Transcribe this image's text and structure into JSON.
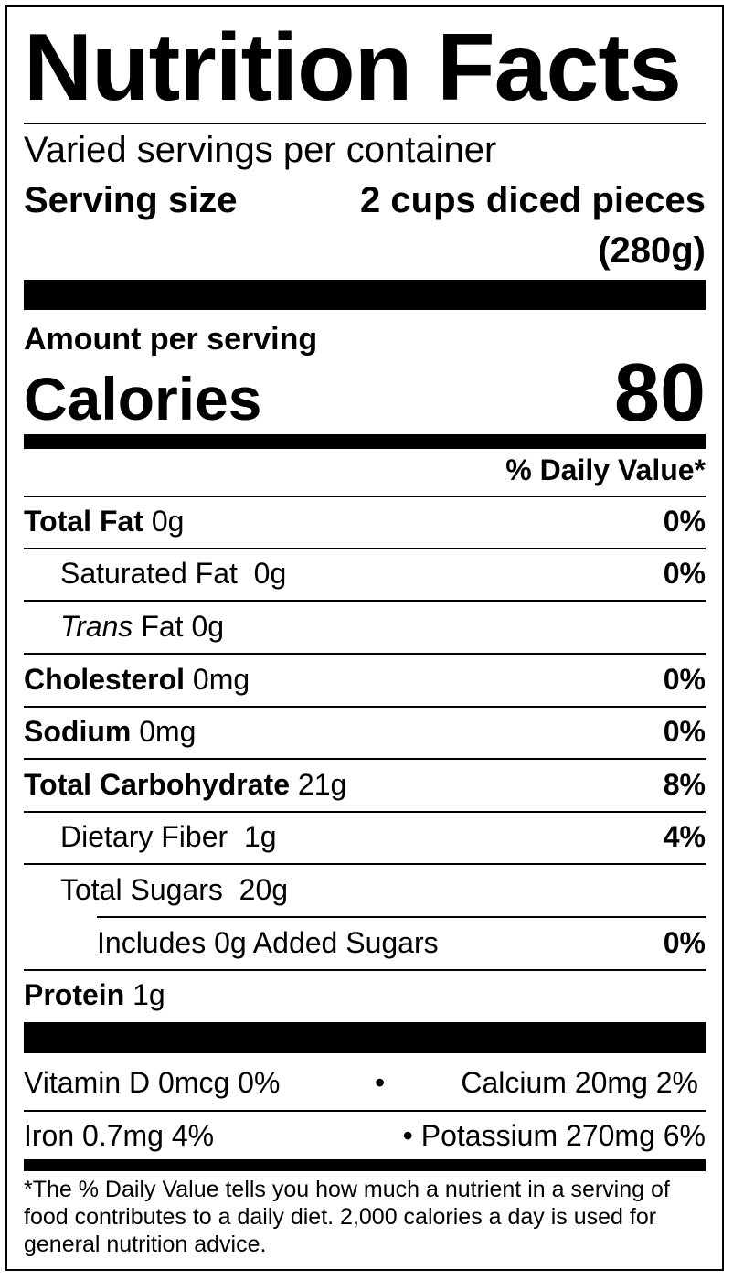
{
  "title": "Nutrition Facts",
  "servings_per_container": "Varied servings per container",
  "serving_size": {
    "label": "Serving size",
    "value": "2 cups diced pieces",
    "grams": "(280g)"
  },
  "amount_per_serving": "Amount per serving",
  "calories": {
    "label": "Calories",
    "value": "80"
  },
  "daily_value_header": "% Daily Value*",
  "nutrients": {
    "total_fat": {
      "label": "Total Fat",
      "amount": "0g",
      "dv": "0%"
    },
    "saturated_fat": {
      "label": "Saturated Fat",
      "amount": "0g",
      "dv": "0%"
    },
    "trans_fat": {
      "label_italic": "Trans",
      "label": "Fat",
      "amount": "0g"
    },
    "cholesterol": {
      "label": "Cholesterol",
      "amount": "0mg",
      "dv": "0%"
    },
    "sodium": {
      "label": "Sodium",
      "amount": "0mg",
      "dv": "0%"
    },
    "total_carbohydrate": {
      "label": "Total Carbohydrate",
      "amount": "21g",
      "dv": "8%"
    },
    "dietary_fiber": {
      "label": "Dietary Fiber",
      "amount": "1g",
      "dv": "4%"
    },
    "total_sugars": {
      "label": "Total Sugars",
      "amount": "20g"
    },
    "added_sugars": {
      "label": "Includes 0g Added Sugars",
      "dv": "0%"
    },
    "protein": {
      "label": "Protein",
      "amount": "1g"
    }
  },
  "vitamins": {
    "vitamin_d": "Vitamin D 0mcg 0%",
    "bullet1": "•",
    "calcium": "Calcium 20mg 2%",
    "iron": "Iron 0.7mg 4%",
    "potassium": "• Potassium 270mg 6%"
  },
  "footnote": "*The % Daily Value tells you how much a nutrient in a serving of food contributes to a daily diet. 2,000 calories a day is used for general nutrition advice."
}
